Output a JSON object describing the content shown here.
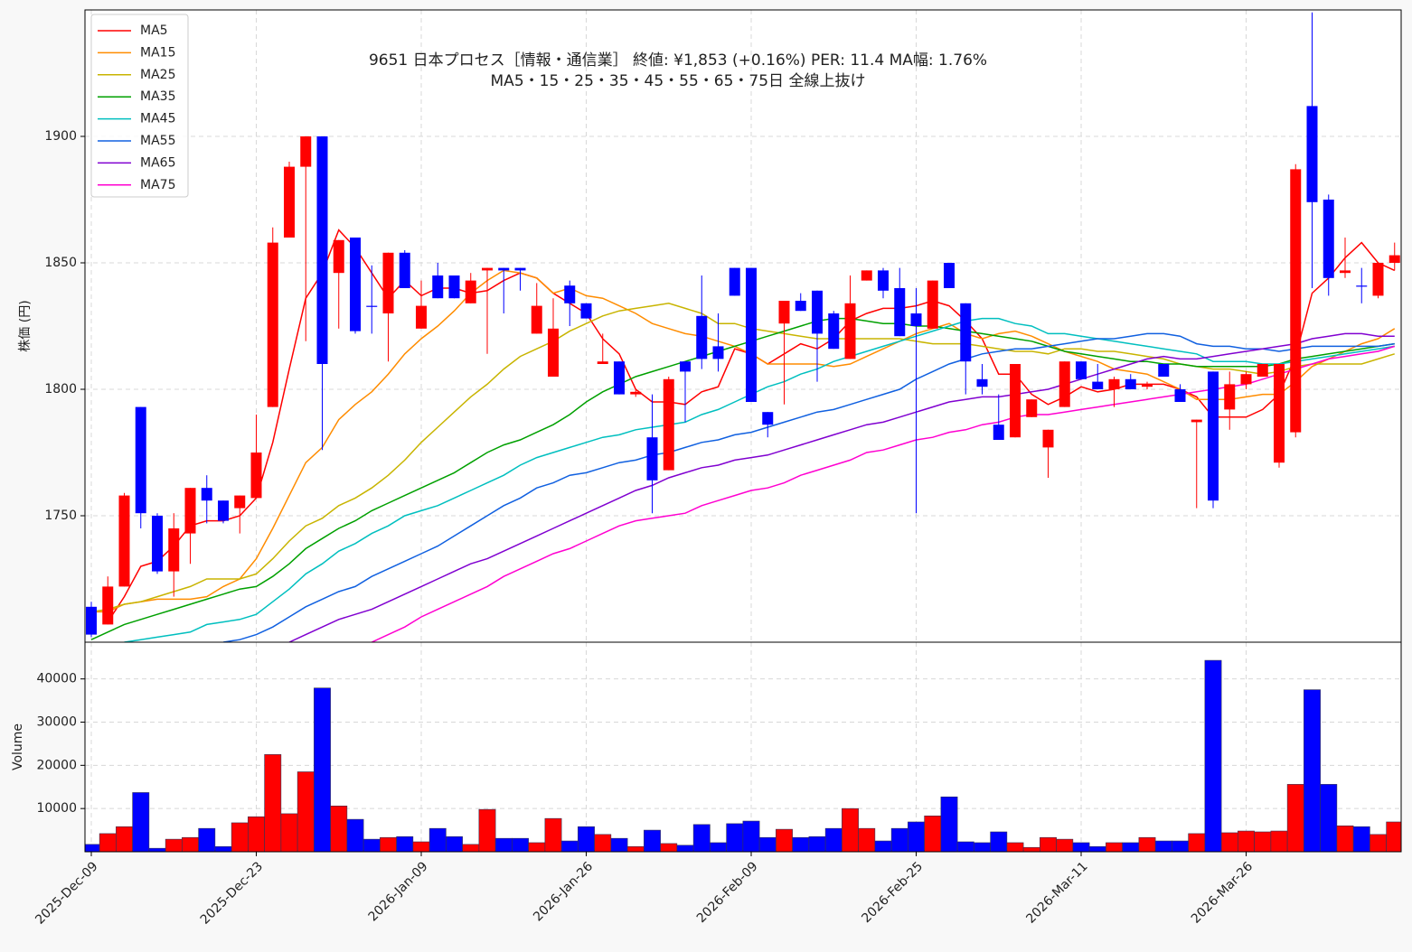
{
  "chart_data": {
    "type": "candlestick",
    "title": "9651  日本プロセス［情報・通信業］ 終値: ¥1,853 (+0.16%)  PER: 11.4  MA幅: 1.76%",
    "subtitle": "MA5・15・25・35・45・55・65・75日 全線上抜け",
    "ylabel": "株価 (円)",
    "categories": [
      "2025-Dec-09",
      null,
      null,
      null,
      null,
      null,
      null,
      null,
      null,
      null,
      "2025-Dec-23",
      null,
      null,
      null,
      null,
      null,
      null,
      null,
      null,
      null,
      "2026-Jan-09",
      null,
      null,
      null,
      null,
      null,
      null,
      null,
      null,
      null,
      "2026-Jan-26",
      null,
      null,
      null,
      null,
      null,
      null,
      null,
      null,
      null,
      "2026-Feb-09",
      null,
      null,
      null,
      null,
      null,
      null,
      null,
      null,
      null,
      "2026-Feb-25",
      null,
      null,
      null,
      null,
      null,
      null,
      null,
      null,
      null,
      "2026-Mar-11",
      null,
      null,
      null,
      null,
      null,
      null,
      null,
      null,
      null,
      "2026-Mar-26",
      null,
      null,
      null,
      null,
      null,
      null,
      null,
      null,
      null
    ],
    "open": [
      1714,
      1707,
      1722,
      1793,
      1750,
      1728,
      1743,
      1761,
      1756,
      1753,
      1757,
      1793,
      1860,
      1888,
      1900,
      1846,
      1860,
      1833,
      1830,
      1854,
      1824,
      1845,
      1845,
      1834,
      1847,
      1848,
      1848,
      1822,
      1805,
      1841,
      1834,
      1810,
      1811,
      1798,
      1781,
      1768,
      1811,
      1829,
      1817,
      1848,
      1848,
      1791,
      1826,
      1835,
      1839,
      1830,
      1812,
      1843,
      1847,
      1840,
      1830,
      1824,
      1850,
      1834,
      1804,
      1786,
      1781,
      1789,
      1777,
      1793,
      1811,
      1803,
      1800,
      1804,
      1801,
      1810,
      1800,
      1787,
      1807,
      1792,
      1802,
      1805,
      1771,
      1783,
      1912,
      1875,
      1846,
      1841,
      1837,
      1850
    ],
    "high": [
      1716,
      1726,
      1759,
      1793,
      1751,
      1751,
      1761,
      1766,
      1756,
      1758,
      1790,
      1864,
      1890,
      1900,
      1900,
      1859,
      1860,
      1849,
      1854,
      1855,
      1843,
      1850,
      1845,
      1846,
      1848,
      1848,
      1848,
      1842,
      1836,
      1843,
      1834,
      1822,
      1811,
      1800,
      1798,
      1805,
      1811,
      1845,
      1830,
      1848,
      1848,
      1791,
      1835,
      1838,
      1839,
      1831,
      1845,
      1847,
      1848,
      1848,
      1840,
      1843,
      1850,
      1834,
      1810,
      1798,
      1810,
      1796,
      1784,
      1811,
      1811,
      1810,
      1805,
      1806,
      1803,
      1810,
      1802,
      1788,
      1807,
      1807,
      1807,
      1810,
      1810,
      1889,
      1949,
      1877,
      1860,
      1848,
      1850,
      1858
    ],
    "low": [
      1702,
      1707,
      1722,
      1745,
      1727,
      1718,
      1731,
      1747,
      1747,
      1743,
      1757,
      1793,
      1860,
      1819,
      1776,
      1824,
      1822,
      1822,
      1811,
      1840,
      1824,
      1836,
      1836,
      1834,
      1814,
      1830,
      1839,
      1822,
      1805,
      1825,
      1828,
      1810,
      1798,
      1797,
      1751,
      1768,
      1787,
      1808,
      1807,
      1837,
      1795,
      1781,
      1794,
      1831,
      1803,
      1816,
      1812,
      1843,
      1836,
      1821,
      1751,
      1824,
      1840,
      1798,
      1798,
      1780,
      1781,
      1789,
      1765,
      1793,
      1804,
      1800,
      1793,
      1800,
      1800,
      1805,
      1795,
      1753,
      1753,
      1784,
      1800,
      1805,
      1769,
      1781,
      1840,
      1837,
      1844,
      1834,
      1836,
      1847
    ],
    "close": [
      1703,
      1722,
      1758,
      1751,
      1728,
      1745,
      1761,
      1756,
      1748,
      1758,
      1775,
      1858,
      1888,
      1900,
      1810,
      1859,
      1823,
      1833,
      1854,
      1840,
      1833,
      1836,
      1836,
      1843,
      1848,
      1847,
      1847,
      1833,
      1824,
      1834,
      1828,
      1811,
      1798,
      1799,
      1764,
      1804,
      1807,
      1812,
      1812,
      1837,
      1795,
      1786,
      1835,
      1831,
      1822,
      1816,
      1834,
      1847,
      1839,
      1821,
      1825,
      1843,
      1840,
      1811,
      1801,
      1780,
      1810,
      1796,
      1784,
      1811,
      1804,
      1800,
      1804,
      1800,
      1802,
      1805,
      1795,
      1788,
      1756,
      1802,
      1806,
      1810,
      1810,
      1887,
      1874,
      1844,
      1847,
      1841,
      1850,
      1853
    ],
    "up_color": "#ff0000",
    "down_color": "#0000ff",
    "series": [
      {
        "name": "MA5",
        "color": "#ff0000",
        "values": [
          null,
          1708,
          1718,
          1730,
          1732,
          1738,
          1746,
          1748,
          1748,
          1750,
          1757,
          1779,
          1808,
          1836,
          1846,
          1863,
          1856,
          1846,
          1836,
          1843,
          1837,
          1840,
          1840,
          1838,
          1839,
          1843,
          1846,
          1844,
          1838,
          1834,
          1830,
          1820,
          1814,
          1800,
          1795,
          1795,
          1794,
          1799,
          1801,
          1816,
          1814,
          1810,
          1814,
          1818,
          1816,
          1820,
          1827,
          1830,
          1832,
          1832,
          1833,
          1835,
          1833,
          1827,
          1820,
          1806,
          1806,
          1798,
          1794,
          1797,
          1801,
          1799,
          1800,
          1802,
          1802,
          1802,
          1800,
          1797,
          1789,
          1789,
          1789,
          1792,
          1798,
          1813,
          1838,
          1844,
          1852,
          1858,
          1850,
          1847
        ]
      },
      {
        "name": "MA15",
        "color": "#ff8c00",
        "values": [
          1712,
          1712,
          1715,
          1716,
          1717,
          1717,
          1717,
          1718,
          1722,
          1725,
          1733,
          1745,
          1758,
          1771,
          1777,
          1788,
          1794,
          1799,
          1806,
          1814,
          1820,
          1825,
          1831,
          1838,
          1843,
          1847,
          1846,
          1844,
          1838,
          1840,
          1837,
          1836,
          1833,
          1830,
          1826,
          1824,
          1822,
          1821,
          1819,
          1817,
          1814,
          1810,
          1810,
          1810,
          1810,
          1809,
          1810,
          1813,
          1816,
          1819,
          1822,
          1824,
          1826,
          1822,
          1820,
          1822,
          1823,
          1821,
          1818,
          1815,
          1813,
          1811,
          1808,
          1807,
          1806,
          1803,
          1800,
          1796,
          1796,
          1796,
          1797,
          1798,
          1798,
          1803,
          1809,
          1812,
          1815,
          1818,
          1820,
          1824
        ]
      },
      {
        "name": "MA25",
        "color": "#c8b400",
        "values": [
          1712,
          1713,
          1715,
          1716,
          1718,
          1720,
          1722,
          1725,
          1725,
          1725,
          1727,
          1733,
          1740,
          1746,
          1749,
          1754,
          1757,
          1761,
          1766,
          1772,
          1779,
          1785,
          1791,
          1797,
          1802,
          1808,
          1813,
          1816,
          1819,
          1823,
          1826,
          1829,
          1831,
          1832,
          1833,
          1834,
          1832,
          1830,
          1826,
          1826,
          1824,
          1823,
          1822,
          1821,
          1820,
          1820,
          1820,
          1820,
          1820,
          1820,
          1819,
          1818,
          1818,
          1818,
          1817,
          1816,
          1815,
          1815,
          1814,
          1816,
          1816,
          1815,
          1815,
          1814,
          1813,
          1812,
          1810,
          1809,
          1808,
          1808,
          1807,
          1806,
          1807,
          1809,
          1810,
          1810,
          1810,
          1810,
          1812,
          1814
        ]
      },
      {
        "name": "MA35",
        "color": "#00a000",
        "values": [
          1701,
          1704,
          1707,
          1709,
          1711,
          1713,
          1715,
          1717,
          1719,
          1721,
          1722,
          1726,
          1731,
          1737,
          1741,
          1745,
          1748,
          1752,
          1755,
          1758,
          1761,
          1764,
          1767,
          1771,
          1775,
          1778,
          1780,
          1783,
          1786,
          1790,
          1795,
          1799,
          1802,
          1805,
          1807,
          1809,
          1811,
          1813,
          1815,
          1817,
          1819,
          1821,
          1823,
          1825,
          1827,
          1828,
          1828,
          1827,
          1826,
          1826,
          1825,
          1825,
          1824,
          1823,
          1822,
          1821,
          1820,
          1819,
          1817,
          1815,
          1814,
          1813,
          1812,
          1811,
          1811,
          1810,
          1810,
          1809,
          1809,
          1809,
          1809,
          1809,
          1810,
          1812,
          1813,
          1814,
          1815,
          1816,
          1817,
          1818
        ]
      },
      {
        "name": "MA45",
        "color": "#00bfbf",
        "values": [
          null,
          null,
          1700,
          1701,
          1702,
          1703,
          1704,
          1707,
          1708,
          1709,
          1711,
          1716,
          1721,
          1727,
          1731,
          1736,
          1739,
          1743,
          1746,
          1750,
          1752,
          1754,
          1757,
          1760,
          1763,
          1766,
          1770,
          1773,
          1775,
          1777,
          1779,
          1781,
          1782,
          1784,
          1785,
          1786,
          1787,
          1790,
          1792,
          1795,
          1798,
          1801,
          1803,
          1806,
          1808,
          1811,
          1813,
          1815,
          1817,
          1819,
          1821,
          1823,
          1825,
          1827,
          1828,
          1828,
          1826,
          1825,
          1822,
          1822,
          1821,
          1820,
          1819,
          1818,
          1817,
          1816,
          1815,
          1814,
          1811,
          1811,
          1811,
          1810,
          1810,
          1811,
          1812,
          1813,
          1814,
          1815,
          1816,
          1817
        ]
      },
      {
        "name": "MA55",
        "color": "#1060e0",
        "values": [
          null,
          null,
          null,
          null,
          null,
          null,
          null,
          null,
          1700,
          1701,
          1703,
          1706,
          1710,
          1714,
          1717,
          1720,
          1722,
          1726,
          1729,
          1732,
          1735,
          1738,
          1742,
          1746,
          1750,
          1754,
          1757,
          1761,
          1763,
          1766,
          1767,
          1769,
          1771,
          1772,
          1774,
          1775,
          1777,
          1779,
          1780,
          1782,
          1783,
          1785,
          1787,
          1789,
          1791,
          1792,
          1794,
          1796,
          1798,
          1800,
          1804,
          1807,
          1810,
          1812,
          1814,
          1815,
          1816,
          1816,
          1817,
          1818,
          1819,
          1820,
          1820,
          1821,
          1822,
          1822,
          1821,
          1818,
          1817,
          1817,
          1816,
          1816,
          1815,
          1816,
          1817,
          1817,
          1817,
          1817,
          1817,
          1818
        ]
      },
      {
        "name": "MA65",
        "color": "#8000d0",
        "values": [
          null,
          null,
          null,
          null,
          null,
          null,
          null,
          null,
          null,
          null,
          null,
          null,
          1700,
          1703,
          1706,
          1709,
          1711,
          1713,
          1716,
          1719,
          1722,
          1725,
          1728,
          1731,
          1733,
          1736,
          1739,
          1742,
          1745,
          1748,
          1751,
          1754,
          1757,
          1760,
          1762,
          1765,
          1767,
          1769,
          1770,
          1772,
          1773,
          1774,
          1776,
          1778,
          1780,
          1782,
          1784,
          1786,
          1787,
          1789,
          1791,
          1793,
          1795,
          1796,
          1797,
          1797,
          1798,
          1799,
          1800,
          1802,
          1804,
          1806,
          1808,
          1810,
          1812,
          1813,
          1812,
          1812,
          1813,
          1814,
          1815,
          1816,
          1817,
          1818,
          1820,
          1821,
          1822,
          1822,
          1821,
          1821
        ]
      },
      {
        "name": "MA75",
        "color": "#ff00d0",
        "values": [
          null,
          null,
          null,
          null,
          null,
          null,
          null,
          null,
          null,
          null,
          null,
          null,
          null,
          null,
          null,
          null,
          null,
          1700,
          1703,
          1706,
          1710,
          1713,
          1716,
          1719,
          1722,
          1726,
          1729,
          1732,
          1735,
          1737,
          1740,
          1743,
          1746,
          1748,
          1749,
          1750,
          1751,
          1754,
          1756,
          1758,
          1760,
          1761,
          1763,
          1766,
          1768,
          1770,
          1772,
          1775,
          1776,
          1778,
          1780,
          1781,
          1783,
          1784,
          1786,
          1787,
          1789,
          1790,
          1790,
          1791,
          1792,
          1793,
          1794,
          1795,
          1796,
          1797,
          1798,
          1799,
          1800,
          1801,
          1802,
          1804,
          1806,
          1808,
          1810,
          1812,
          1813,
          1814,
          1815,
          1817
        ]
      }
    ],
    "ylim": [
      1700,
      1950
    ],
    "yticks": [
      1750,
      1800,
      1850,
      1900
    ],
    "grid": true,
    "legend": "upper left",
    "volume": {
      "ylabel": "Volume",
      "values": [
        1700,
        4200,
        5800,
        13700,
        800,
        2900,
        3300,
        5400,
        1200,
        6700,
        8100,
        22500,
        8800,
        18500,
        37900,
        10600,
        7500,
        2900,
        3300,
        3500,
        2300,
        5400,
        3500,
        1700,
        9800,
        3100,
        3100,
        2100,
        7700,
        2500,
        5800,
        4000,
        3100,
        1200,
        5000,
        1900,
        1500,
        6300,
        2100,
        6500,
        7100,
        3300,
        5200,
        3300,
        3500,
        5400,
        10000,
        5400,
        2500,
        5400,
        6900,
        8300,
        12700,
        2300,
        2100,
        4600,
        2100,
        1000,
        3300,
        2900,
        2100,
        1200,
        2100,
        2100,
        3300,
        2500,
        2500,
        4200,
        44300,
        4400,
        4800,
        4600,
        4800,
        15600,
        37500,
        15600,
        6000,
        5800,
        4000,
        6900
      ],
      "ylim": [
        0,
        48500
      ],
      "yticks": [
        10000,
        20000,
        30000,
        40000
      ]
    }
  }
}
